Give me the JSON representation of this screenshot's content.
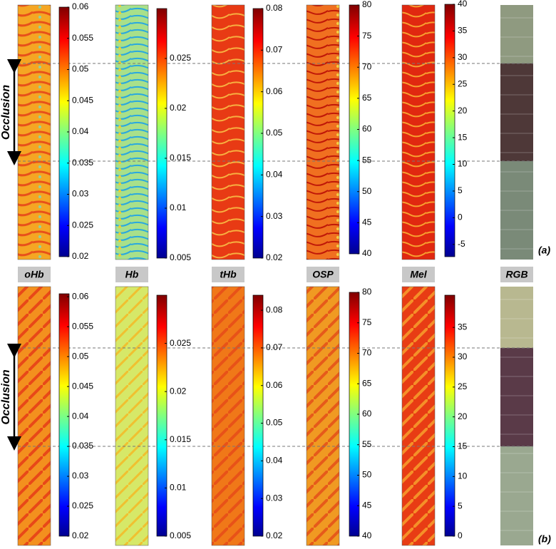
{
  "column_labels": [
    "oHb",
    "Hb",
    "tHb",
    "OSP",
    "Mel",
    "RGB"
  ],
  "panels": [
    {
      "label": "(a)",
      "annotation": "Occlusion",
      "colorbars": [
        {
          "lim": [
            0.02,
            0.06
          ],
          "ticks": [
            0.02,
            0.025,
            0.03,
            0.035,
            0.04,
            0.045,
            0.05,
            0.055,
            0.06
          ]
        },
        {
          "lim": [
            0.005,
            0.03
          ],
          "ticks": [
            0.005,
            0.01,
            0.015,
            0.02,
            0.025
          ]
        },
        {
          "lim": [
            0.02,
            0.08
          ],
          "ticks": [
            0.02,
            0.03,
            0.04,
            0.05,
            0.06,
            0.07,
            0.08
          ]
        },
        {
          "lim": [
            40,
            80
          ],
          "ticks": [
            40,
            45,
            50,
            55,
            60,
            65,
            70,
            75,
            80
          ]
        },
        {
          "lim": [
            -7.3,
            40
          ],
          "ticks": [
            -5,
            0,
            5,
            10,
            15,
            20,
            25,
            30,
            35,
            40
          ]
        }
      ]
    },
    {
      "label": "(b)",
      "annotation": "Occlusion",
      "colorbars": [
        {
          "lim": [
            0.02,
            0.0605
          ],
          "ticks": [
            0.02,
            0.025,
            0.03,
            0.035,
            0.04,
            0.045,
            0.05,
            0.055,
            0.06
          ]
        },
        {
          "lim": [
            0.005,
            0.03
          ],
          "ticks": [
            0.005,
            0.01,
            0.015,
            0.02,
            0.025
          ]
        },
        {
          "lim": [
            0.02,
            0.084
          ],
          "ticks": [
            0.02,
            0.03,
            0.04,
            0.05,
            0.06,
            0.07,
            0.08
          ]
        },
        {
          "lim": [
            40,
            80
          ],
          "ticks": [
            40,
            45,
            50,
            55,
            60,
            65,
            70,
            75,
            80
          ]
        },
        {
          "lim": [
            0,
            40.4
          ],
          "ticks": [
            0,
            5,
            10,
            15,
            20,
            25,
            30,
            35
          ]
        }
      ]
    }
  ]
}
